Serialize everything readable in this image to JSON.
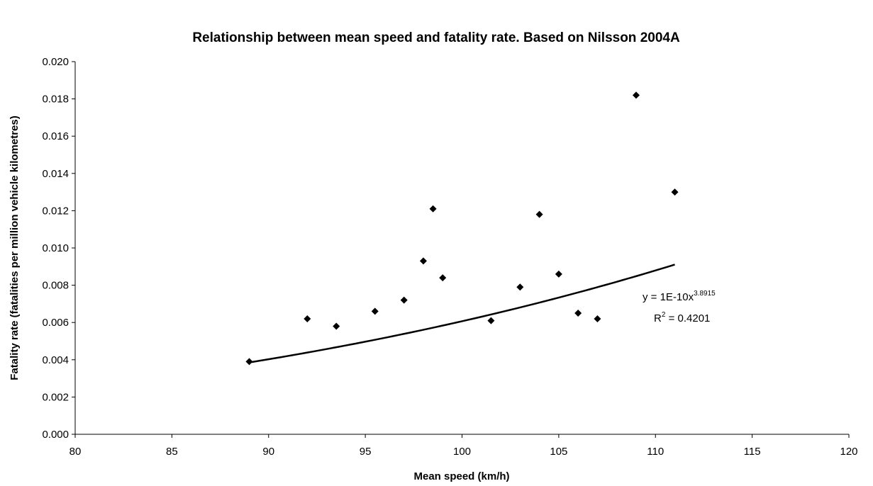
{
  "chart_data": {
    "type": "scatter",
    "title": "Relationship between mean speed and fatality rate. Based on Nilsson 2004A",
    "xlabel": "Mean speed (km/h)",
    "ylabel": "Fatality rate (fatalities per million vehicle kilometres)",
    "xlim": [
      80,
      120
    ],
    "ylim": [
      0,
      0.02
    ],
    "x_ticks": [
      "80",
      "85",
      "90",
      "95",
      "100",
      "105",
      "110",
      "115",
      "120"
    ],
    "y_ticks": [
      "0.000",
      "0.002",
      "0.004",
      "0.006",
      "0.008",
      "0.010",
      "0.012",
      "0.014",
      "0.016",
      "0.018",
      "0.020"
    ],
    "grid": false,
    "legend": "none",
    "marker": "diamond",
    "points": [
      {
        "x": 89,
        "y": 0.0039
      },
      {
        "x": 92,
        "y": 0.0062
      },
      {
        "x": 93.5,
        "y": 0.0058
      },
      {
        "x": 95.5,
        "y": 0.0066
      },
      {
        "x": 97,
        "y": 0.0072
      },
      {
        "x": 98,
        "y": 0.0093
      },
      {
        "x": 98.5,
        "y": 0.0121
      },
      {
        "x": 99,
        "y": 0.0084
      },
      {
        "x": 101.5,
        "y": 0.0061
      },
      {
        "x": 103,
        "y": 0.0079
      },
      {
        "x": 104,
        "y": 0.0118
      },
      {
        "x": 105,
        "y": 0.0086
      },
      {
        "x": 106,
        "y": 0.0065
      },
      {
        "x": 107,
        "y": 0.0062
      },
      {
        "x": 109,
        "y": 0.0182
      },
      {
        "x": 111,
        "y": 0.013
      }
    ],
    "trendline": {
      "type": "power",
      "coefficient": 1e-10,
      "exponent": 3.8915,
      "x_range": [
        89,
        111
      ],
      "equation_base": "y = 1E-10x",
      "equation_exponent": "3.8915",
      "r2_base": "R",
      "r2_exponent": "2",
      "r2_value": " = 0.4201"
    }
  }
}
